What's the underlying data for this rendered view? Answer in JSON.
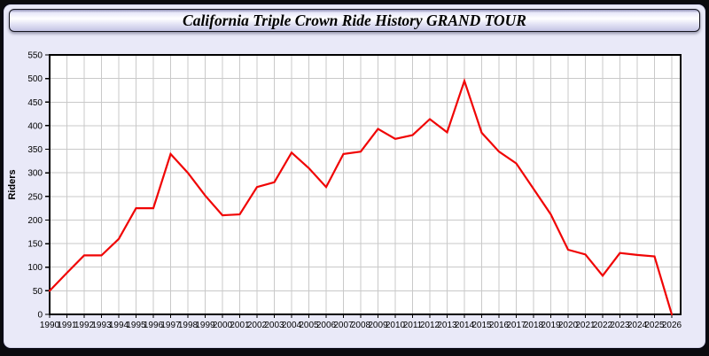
{
  "window": {
    "title": "California Triple Crown Ride History GRAND TOUR"
  },
  "colors": {
    "panel_background": "#e9e9f8",
    "plot_background": "#ffffff",
    "grid_color": "#c9c9c9",
    "axis_color": "#000000",
    "line_color": "#f00505",
    "title_gradient_light": "#ffffff",
    "title_gradient_dark": "#c3c3e3"
  },
  "chart_data": {
    "type": "line",
    "title": "California Triple Crown Ride History GRAND TOUR",
    "xlabel": "",
    "ylabel": "Riders",
    "ylim": [
      0,
      550
    ],
    "ytick_step": 50,
    "grid": true,
    "legend_position": "none",
    "x": [
      1990,
      1991,
      1992,
      1993,
      1994,
      1995,
      1996,
      1997,
      1998,
      1999,
      2000,
      2001,
      2002,
      2003,
      2004,
      2005,
      2006,
      2007,
      2008,
      2009,
      2010,
      2011,
      2012,
      2013,
      2014,
      2015,
      2016,
      2017,
      2018,
      2019,
      2020,
      2021,
      2022,
      2023,
      2024,
      2025,
      2026
    ],
    "series": [
      {
        "name": "Riders",
        "color": "#f00505",
        "values": [
          50,
          88,
          125,
          125,
          160,
          225,
          225,
          340,
          300,
          252,
          210,
          212,
          270,
          280,
          343,
          310,
          270,
          340,
          345,
          393,
          372,
          380,
          414,
          386,
          495,
          385,
          345,
          320,
          266,
          212,
          137,
          127,
          82,
          130,
          126,
          123,
          0
        ]
      }
    ]
  }
}
